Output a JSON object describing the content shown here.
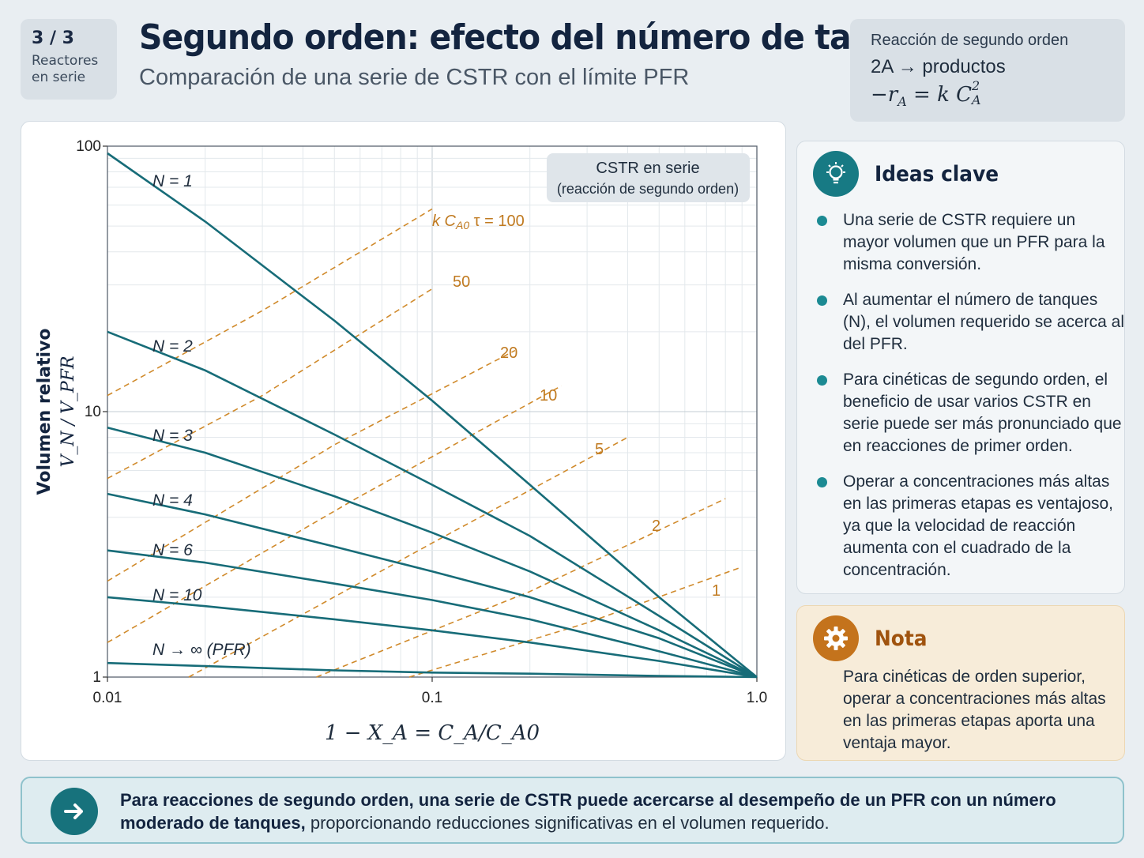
{
  "page_badge": {
    "number": "3 / 3",
    "label_line1": "Reactores",
    "label_line2": "en serie"
  },
  "header": {
    "title": "Segundo orden: efecto del número de tanques",
    "subtitle": "Comparación de una serie de CSTR con el límite PFR"
  },
  "reaction_box": {
    "title": "Reacción de segundo orden",
    "equation": "2A → productos",
    "rate_lhs": "−r",
    "rate_sub": "A",
    "rate_mid": " = k C",
    "rate_sub2": "A",
    "rate_sup2": "2"
  },
  "chart_data": {
    "type": "line",
    "xscale": "log",
    "yscale": "log",
    "xlim": [
      0.01,
      1.0
    ],
    "ylim": [
      1,
      100
    ],
    "x_ticks": [
      "0.01",
      "0.1",
      "1.0"
    ],
    "y_ticks": [
      "1",
      "10",
      "100"
    ],
    "xlabel": "1 − X_A = C_A/C_A0",
    "ylabel_line1": "Volumen relativo",
    "ylabel_line2": "V_N / V_PFR",
    "legend_box": {
      "line1": "CSTR en serie",
      "line2": "(reacción de segundo orden)",
      "placement": "top-right"
    },
    "grid": true,
    "series_color": "#176c78",
    "contour_color": "#d08a2b",
    "series": [
      {
        "name": "N = 1",
        "points": [
          [
            0.01,
            94
          ],
          [
            0.02,
            52
          ],
          [
            0.05,
            22
          ],
          [
            0.1,
            11
          ],
          [
            0.2,
            5.3
          ],
          [
            0.5,
            2.0
          ],
          [
            1.0,
            1.0
          ]
        ]
      },
      {
        "name": "N = 2",
        "points": [
          [
            0.01,
            20
          ],
          [
            0.02,
            14.3
          ],
          [
            0.05,
            8.2
          ],
          [
            0.1,
            5.3
          ],
          [
            0.2,
            3.4
          ],
          [
            0.5,
            1.7
          ],
          [
            1.0,
            1.0
          ]
        ]
      },
      {
        "name": "N = 3",
        "points": [
          [
            0.01,
            8.7
          ],
          [
            0.02,
            7.0
          ],
          [
            0.05,
            4.8
          ],
          [
            0.1,
            3.5
          ],
          [
            0.2,
            2.5
          ],
          [
            0.5,
            1.5
          ],
          [
            1.0,
            1.0
          ]
        ]
      },
      {
        "name": "N = 4",
        "points": [
          [
            0.01,
            4.9
          ],
          [
            0.02,
            4.1
          ],
          [
            0.05,
            3.1
          ],
          [
            0.1,
            2.5
          ],
          [
            0.2,
            2.0
          ],
          [
            0.5,
            1.4
          ],
          [
            1.0,
            1.0
          ]
        ]
      },
      {
        "name": "N = 6",
        "points": [
          [
            0.01,
            3.0
          ],
          [
            0.02,
            2.7
          ],
          [
            0.05,
            2.25
          ],
          [
            0.1,
            1.95
          ],
          [
            0.2,
            1.65
          ],
          [
            0.5,
            1.25
          ],
          [
            1.0,
            1.0
          ]
        ]
      },
      {
        "name": "N = 10",
        "points": [
          [
            0.01,
            2.0
          ],
          [
            0.02,
            1.85
          ],
          [
            0.05,
            1.65
          ],
          [
            0.1,
            1.5
          ],
          [
            0.2,
            1.35
          ],
          [
            0.5,
            1.15
          ],
          [
            1.0,
            1.0
          ]
        ]
      },
      {
        "name": "N → ∞ (PFR)",
        "points": [
          [
            0.01,
            1.13
          ],
          [
            0.02,
            1.1
          ],
          [
            0.05,
            1.06
          ],
          [
            0.1,
            1.04
          ],
          [
            0.2,
            1.03
          ],
          [
            0.5,
            1.01
          ],
          [
            1.0,
            1.0
          ]
        ]
      }
    ],
    "contours": [
      {
        "label_prefix": "k C",
        "label_sub": "A0",
        "label_suffix": " τ = 100",
        "value": "100",
        "points": [
          [
            0.01,
            11.5
          ],
          [
            0.03,
            24
          ],
          [
            0.1,
            58
          ]
        ]
      },
      {
        "value": "50",
        "points": [
          [
            0.01,
            5.6
          ],
          [
            0.03,
            11.5
          ],
          [
            0.1,
            29
          ]
        ]
      },
      {
        "value": "20",
        "points": [
          [
            0.01,
            2.3
          ],
          [
            0.05,
            7.5
          ],
          [
            0.18,
            17
          ]
        ]
      },
      {
        "value": "10",
        "points": [
          [
            0.01,
            1.35
          ],
          [
            0.06,
            4.8
          ],
          [
            0.25,
            12.5
          ]
        ]
      },
      {
        "value": "5",
        "points": [
          [
            0.0178,
            1.0
          ],
          [
            0.1,
            3.2
          ],
          [
            0.4,
            8.0
          ]
        ]
      },
      {
        "value": "2",
        "points": [
          [
            0.044,
            1.0
          ],
          [
            0.2,
            2.1
          ],
          [
            0.8,
            4.7
          ]
        ]
      },
      {
        "value": "1",
        "points": [
          [
            0.085,
            1.0
          ],
          [
            0.3,
            1.6
          ],
          [
            0.9,
            2.6
          ]
        ]
      }
    ]
  },
  "ideas_panel": {
    "title": "Ideas clave",
    "items": [
      "Una serie de CSTR requiere un mayor volumen que un PFR para la misma conversión.",
      "Al aumentar el número de tanques (N), el volumen requerido se acerca al del PFR.",
      "Para cinéticas de segundo orden, el beneficio de usar varios CSTR en serie puede ser más pronunciado que en reacciones de primer orden.",
      "Operar a concentraciones más altas en las primeras etapas es ventajoso, ya que la velocidad de reacción aumenta con el cuadrado de la concentración."
    ]
  },
  "nota_panel": {
    "title": "Nota",
    "text": "Para cinéticas de orden superior, operar a concentraciones más altas en las primeras etapas aporta una ventaja mayor."
  },
  "bottom_bar": {
    "bold_part": "Para reacciones de segundo orden, una serie de CSTR puede acercarse al desempeño de un PFR con un número moderado de tanques,",
    "normal_part": " proporcionando reducciones significativas en el volumen requerido."
  },
  "icons": {
    "ideas": "lightbulb-icon",
    "nota": "gear-icon",
    "bottom": "arrow-right-icon"
  }
}
